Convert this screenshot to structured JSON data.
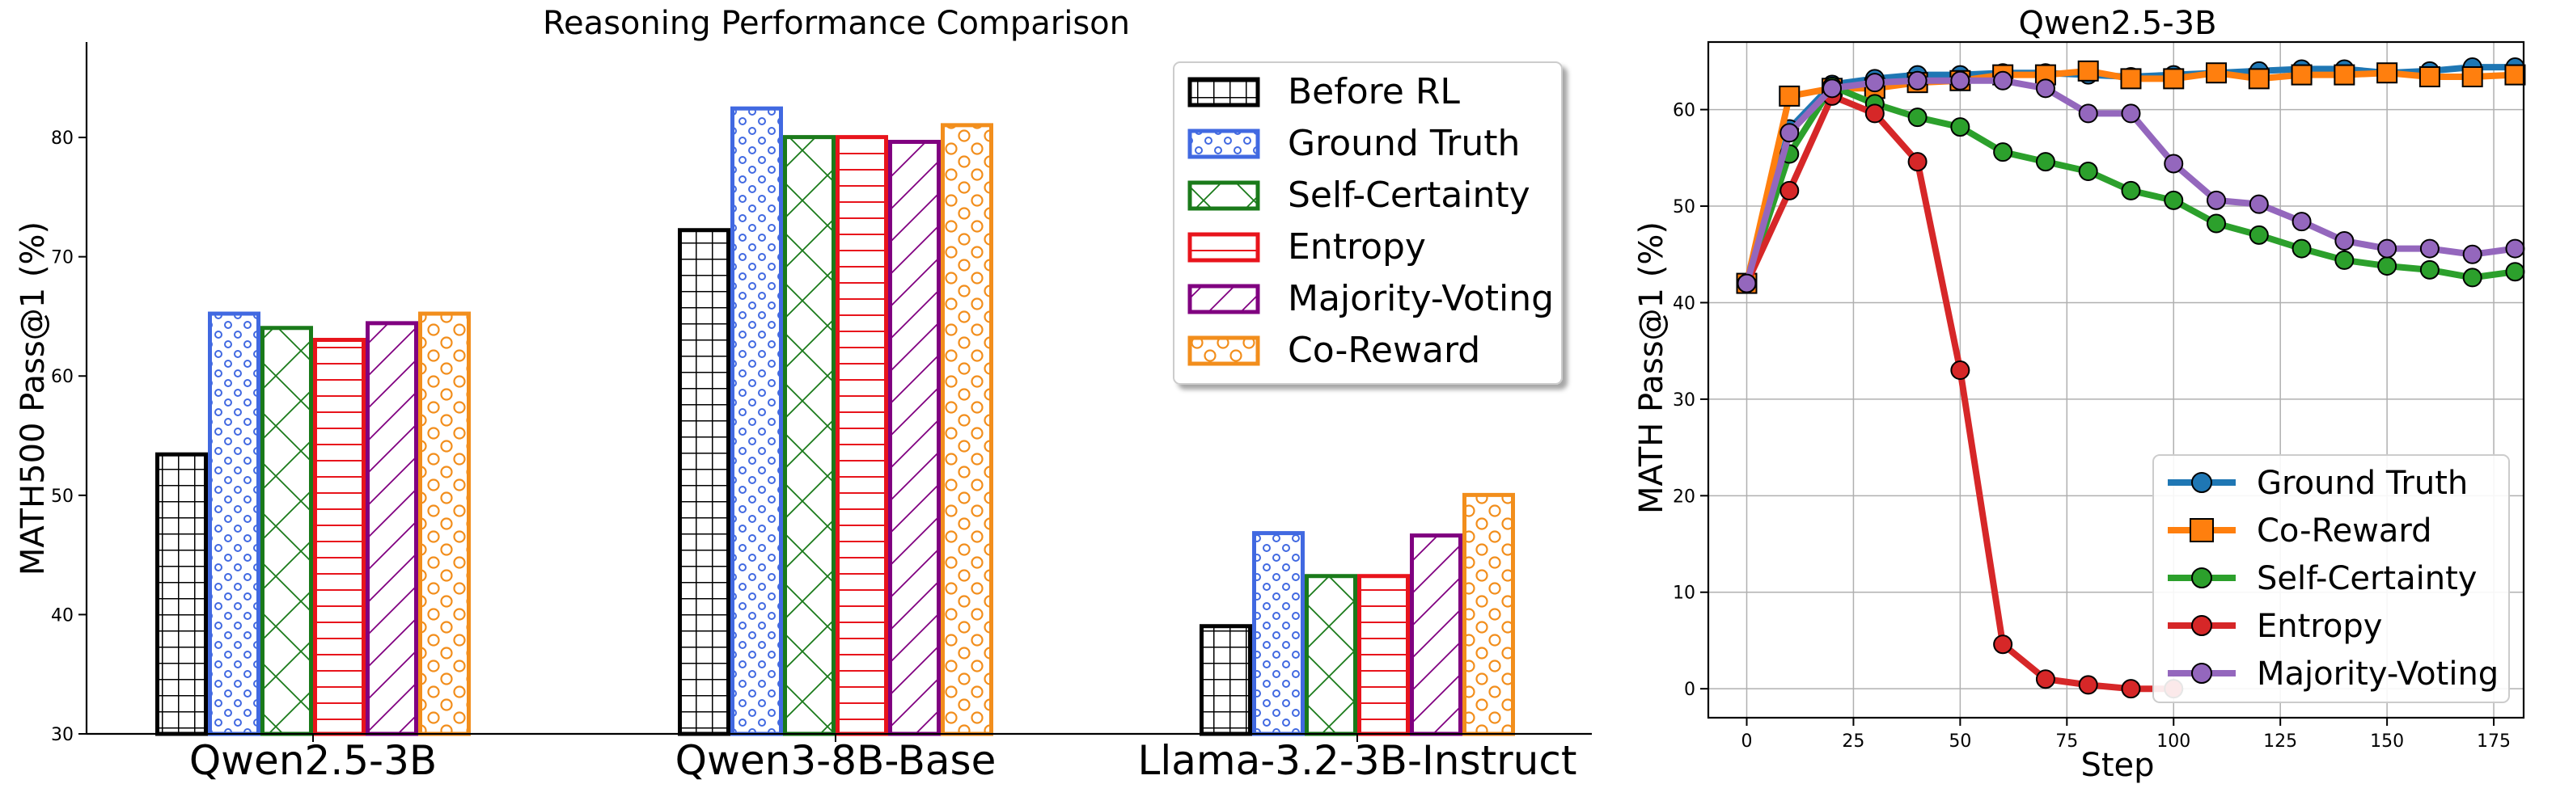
{
  "chart_data": [
    {
      "type": "bar",
      "title": "Reasoning Performance Comparison",
      "xlabel": "",
      "ylabel": "MATH500 Pass@1 (%)",
      "ylim": [
        30,
        88
      ],
      "yticks": [
        30,
        40,
        50,
        60,
        70,
        80
      ],
      "grid": false,
      "legend_position": "top-right",
      "categories": [
        "Qwen2.5-3B",
        "Qwen3-8B-Base",
        "Llama-3.2-3B-Instruct"
      ],
      "series": [
        {
          "name": "Before RL",
          "values": [
            53.6,
            72.4,
            39.2
          ],
          "color": "#000000",
          "pattern": "grid"
        },
        {
          "name": "Ground Truth",
          "values": [
            65.4,
            82.6,
            47.0
          ],
          "color": "#4169e1",
          "pattern": "small-circles"
        },
        {
          "name": "Self-Certainty",
          "values": [
            64.2,
            80.2,
            43.4
          ],
          "color": "#1a7a1a",
          "pattern": "cross-hatch"
        },
        {
          "name": "Entropy",
          "values": [
            63.2,
            80.2,
            43.4
          ],
          "color": "#e8141c",
          "pattern": "horizontal"
        },
        {
          "name": "Majority-Voting",
          "values": [
            64.6,
            79.8,
            46.8
          ],
          "color": "#800080",
          "pattern": "diagonal"
        },
        {
          "name": "Co-Reward",
          "values": [
            65.4,
            81.2,
            50.2
          ],
          "color": "#f28e1c",
          "pattern": "large-circles"
        }
      ]
    },
    {
      "type": "line",
      "title": "Qwen2.5-3B",
      "xlabel": "Step",
      "ylabel": "MATH Pass@1 (%)",
      "xlim": [
        -9,
        182
      ],
      "ylim": [
        -3,
        67
      ],
      "xticks": [
        0,
        25,
        50,
        75,
        100,
        125,
        150,
        175
      ],
      "yticks": [
        0,
        10,
        20,
        30,
        40,
        50,
        60
      ],
      "grid": true,
      "legend_position": "bottom-right",
      "series": [
        {
          "name": "Ground Truth",
          "color": "#1f77b4",
          "marker": "circle",
          "x": [
            0,
            10,
            20,
            30,
            40,
            50,
            60,
            70,
            80,
            90,
            100,
            110,
            120,
            130,
            140,
            150,
            160,
            170,
            180
          ],
          "y": [
            42.0,
            58.0,
            62.6,
            63.2,
            63.6,
            63.6,
            63.8,
            63.8,
            63.6,
            63.4,
            63.6,
            63.8,
            64.0,
            64.2,
            64.2,
            63.8,
            64.0,
            64.4,
            64.4
          ]
        },
        {
          "name": "Co-Reward",
          "color": "#ff7f0e",
          "marker": "square",
          "x": [
            0,
            10,
            20,
            30,
            40,
            50,
            60,
            70,
            80,
            90,
            100,
            110,
            120,
            130,
            140,
            150,
            160,
            170,
            180
          ],
          "y": [
            42.0,
            61.4,
            62.2,
            62.2,
            62.8,
            63.0,
            63.6,
            63.6,
            64.0,
            63.2,
            63.2,
            63.8,
            63.2,
            63.6,
            63.6,
            63.8,
            63.4,
            63.4,
            63.6
          ]
        },
        {
          "name": "Self-Certainty",
          "color": "#2ca02c",
          "marker": "circle",
          "x": [
            0,
            10,
            20,
            30,
            40,
            50,
            60,
            70,
            80,
            90,
            100,
            110,
            120,
            130,
            140,
            150,
            160,
            170,
            180
          ],
          "y": [
            42.0,
            55.4,
            62.4,
            60.6,
            59.2,
            58.2,
            55.6,
            54.6,
            53.6,
            51.6,
            50.6,
            48.2,
            47.0,
            45.6,
            44.4,
            43.8,
            43.4,
            42.6,
            43.2
          ]
        },
        {
          "name": "Entropy",
          "color": "#d62728",
          "marker": "circle",
          "x": [
            0,
            10,
            20,
            30,
            40,
            50,
            60,
            70,
            80,
            90,
            100
          ],
          "y": [
            42.0,
            51.6,
            61.4,
            59.6,
            54.6,
            33.0,
            4.6,
            1.0,
            0.4,
            0.0,
            0.0
          ]
        },
        {
          "name": "Majority-Voting",
          "color": "#9467bd",
          "marker": "circle",
          "x": [
            0,
            10,
            20,
            30,
            40,
            50,
            60,
            70,
            80,
            90,
            100,
            110,
            120,
            130,
            140,
            150,
            160,
            170,
            180
          ],
          "y": [
            42.0,
            57.6,
            62.2,
            62.8,
            63.0,
            63.0,
            63.0,
            62.2,
            59.6,
            59.6,
            54.4,
            50.6,
            50.2,
            48.4,
            46.4,
            45.6,
            45.6,
            45.0,
            45.6
          ]
        }
      ]
    }
  ]
}
